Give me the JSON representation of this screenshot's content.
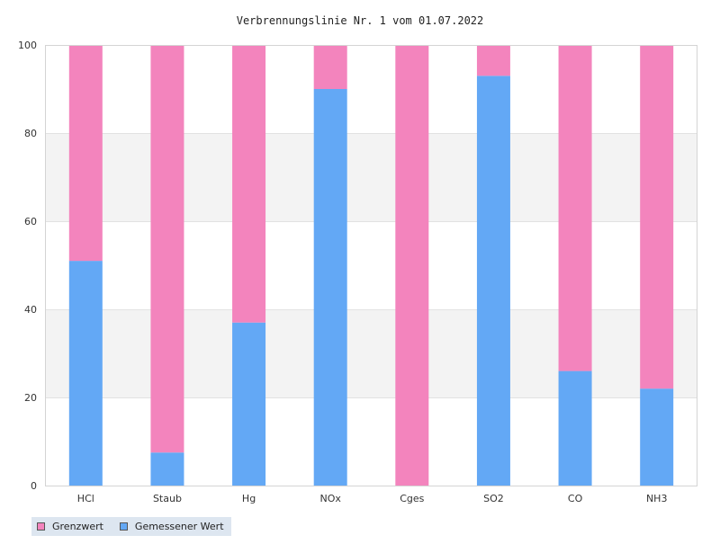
{
  "chart_data": {
    "type": "bar",
    "stacked": true,
    "title": "Verbrennungslinie Nr. 1 vom 01.07.2022",
    "xlabel": "",
    "ylabel": "",
    "categories": [
      "HCl",
      "Staub",
      "Hg",
      "NOx",
      "Cges",
      "SO2",
      "CO",
      "NH3"
    ],
    "ylim": [
      0,
      100
    ],
    "yticks": [
      0,
      20,
      40,
      60,
      80,
      100
    ],
    "grid": true,
    "legend_position": "bottom-left",
    "series": [
      {
        "name": "Gemessener Wert",
        "color": "#63a8f5",
        "values": [
          51,
          7.5,
          37,
          90,
          0,
          93,
          26,
          22
        ]
      },
      {
        "name": "Grenzwert",
        "color": "#f384bd",
        "values": [
          49,
          92.5,
          63,
          10,
          100,
          7,
          74,
          78
        ]
      }
    ]
  },
  "legend": {
    "items": [
      {
        "label": "Grenzwert",
        "color": "#f384bd"
      },
      {
        "label": "Gemessener Wert",
        "color": "#63a8f5"
      }
    ]
  }
}
